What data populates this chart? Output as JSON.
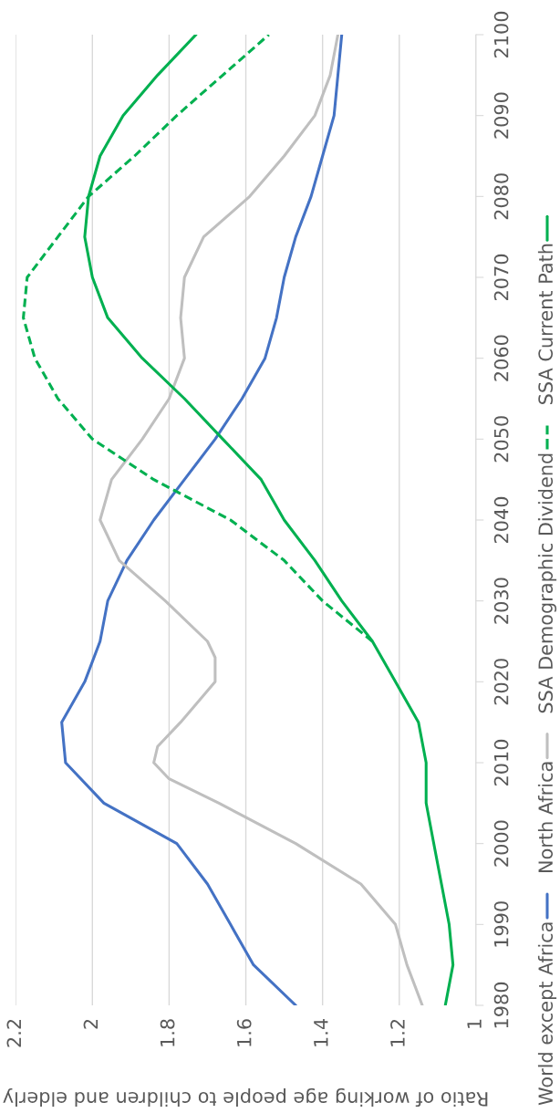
{
  "chart_data": {
    "type": "line",
    "xlabel": "Ratio of working age people to children and elderly",
    "xlim": [
      2.2,
      1
    ],
    "xticks": [
      2.2,
      2,
      1.8,
      1.6,
      1.4,
      1.2,
      1
    ],
    "ylim": [
      1980,
      2100
    ],
    "yticks": [
      1980,
      1990,
      2000,
      2010,
      2020,
      2030,
      2040,
      2050,
      2060,
      2070,
      2080,
      2090,
      2100
    ],
    "grid": "x",
    "legend": "right",
    "marker": "none",
    "series": [
      {
        "name": "World except Africa",
        "color": "#4472c4",
        "line_style": "solid",
        "x": [
          1.47,
          1.58,
          1.64,
          1.7,
          1.78,
          1.97,
          2.07,
          2.08,
          2.02,
          1.98,
          1.96,
          1.91,
          1.84,
          1.76,
          1.68,
          1.61,
          1.55,
          1.52,
          1.5,
          1.47,
          1.43,
          1.4,
          1.37,
          1.36,
          1.35
        ],
        "values": [
          1980,
          1985,
          1990,
          1995,
          2000,
          2005,
          2010,
          2015,
          2020,
          2025,
          2030,
          2035,
          2040,
          2045,
          2050,
          2055,
          2060,
          2065,
          2070,
          2075,
          2080,
          2085,
          2090,
          2095,
          2100
        ]
      },
      {
        "name": "North Africa",
        "color": "#bfbfbf",
        "line_style": "solid",
        "x": [
          1.14,
          1.18,
          1.21,
          1.3,
          1.47,
          1.67,
          1.8,
          1.84,
          1.83,
          1.77,
          1.68,
          1.68,
          1.7,
          1.81,
          1.93,
          1.98,
          1.95,
          1.87,
          1.8,
          1.76,
          1.77,
          1.76,
          1.71,
          1.59,
          1.5,
          1.42,
          1.38,
          1.36
        ],
        "values": [
          1980,
          1985,
          1990,
          1995,
          2000,
          2005,
          2008,
          2010,
          2012,
          2015,
          2020,
          2023,
          2025,
          2030,
          2035,
          2040,
          2045,
          2050,
          2055,
          2060,
          2065,
          2070,
          2075,
          2080,
          2085,
          2090,
          2095,
          2100
        ]
      },
      {
        "name": "SSA Demographic Dividend",
        "color": "#00b050",
        "line_style": "dashed",
        "x": [
          1.27,
          1.4,
          1.5,
          1.64,
          1.84,
          2.0,
          2.09,
          2.15,
          2.18,
          2.17,
          2.09,
          2.01,
          1.89,
          1.78,
          1.66,
          1.54
        ],
        "values": [
          2025,
          2030,
          2035,
          2040,
          2045,
          2050,
          2055,
          2060,
          2065,
          2070,
          2075,
          2080,
          2085,
          2090,
          2095,
          2100
        ]
      },
      {
        "name": "SSA Current Path",
        "color": "#00b050",
        "line_style": "solid",
        "x": [
          1.08,
          1.06,
          1.07,
          1.09,
          1.11,
          1.13,
          1.13,
          1.15,
          1.21,
          1.27,
          1.35,
          1.42,
          1.5,
          1.56,
          1.66,
          1.76,
          1.87,
          1.96,
          2.0,
          2.02,
          2.01,
          1.98,
          1.92,
          1.83,
          1.73
        ],
        "values": [
          1980,
          1985,
          1990,
          1995,
          2000,
          2005,
          2010,
          2015,
          2020,
          2025,
          2030,
          2035,
          2040,
          2045,
          2050,
          2055,
          2060,
          2065,
          2070,
          2075,
          2080,
          2085,
          2090,
          2095,
          2100
        ]
      }
    ]
  }
}
